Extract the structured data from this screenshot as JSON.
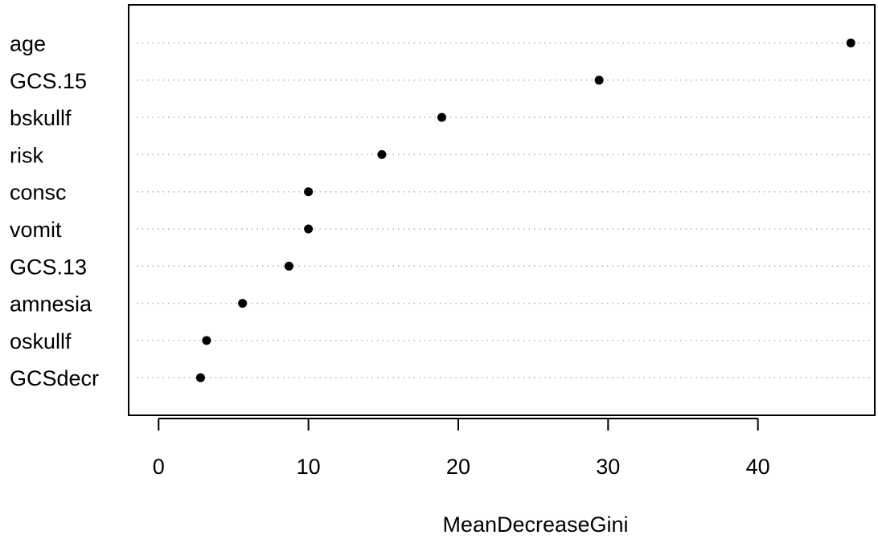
{
  "chart_data": {
    "type": "scatter",
    "subtype": "dotchart",
    "title": "",
    "xlabel": "MeanDecreaseGini",
    "ylabel": "",
    "categories": [
      "age",
      "GCS.15",
      "bskullf",
      "risk",
      "consc",
      "vomit",
      "GCS.13",
      "amnesia",
      "oskullf",
      "GCSdecr"
    ],
    "values": [
      46.2,
      29.4,
      18.9,
      14.9,
      10.0,
      10.0,
      8.7,
      5.6,
      3.2,
      2.8
    ],
    "xlim": [
      -2.0,
      47.8
    ],
    "xticks": [
      0,
      10,
      20,
      30,
      40
    ],
    "grid": "dotted horizontal guide lines",
    "colors": {
      "point": "#000000",
      "guide": "#b0b0b0",
      "axis": "#000000"
    }
  }
}
